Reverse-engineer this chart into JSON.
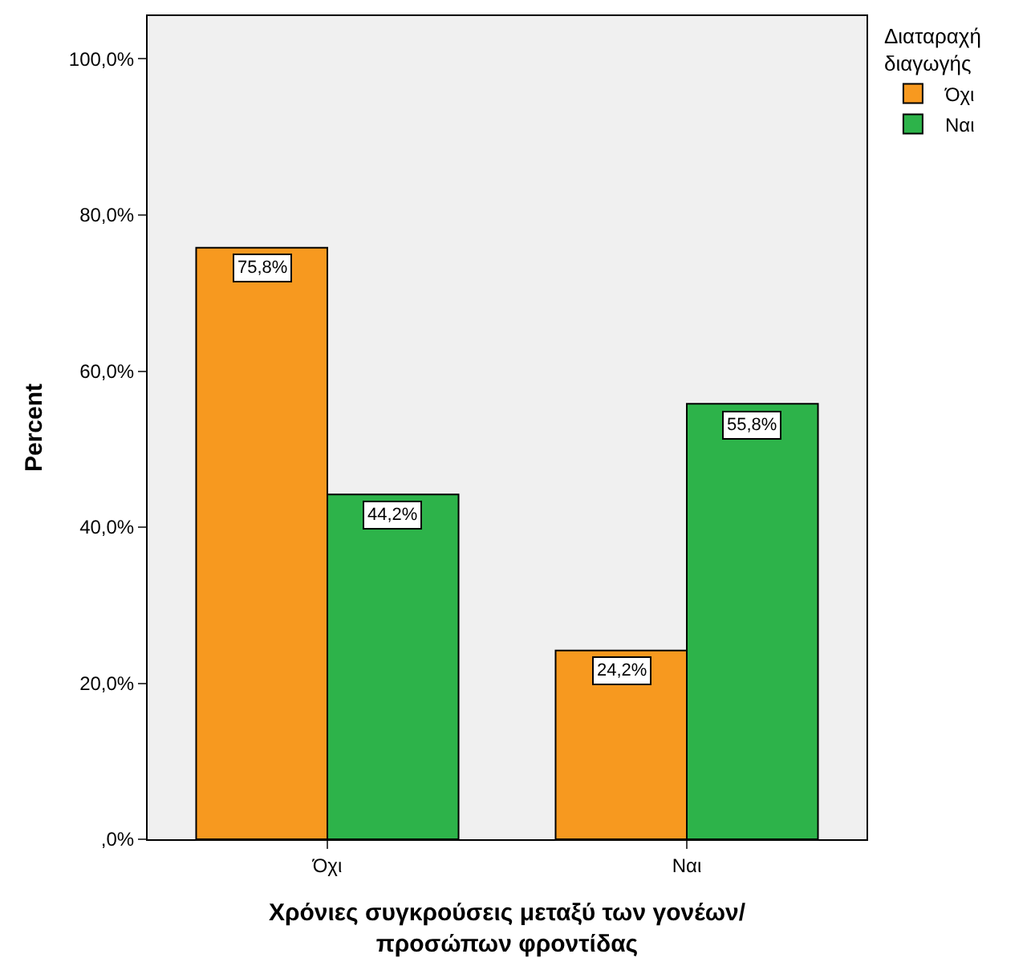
{
  "chart_data": {
    "type": "bar",
    "xlabel": "Χρόνιες συγκρούσεις μεταξύ των γονέων/ προσώπων φροντίδας",
    "ylabel": "Percent",
    "legend_title": "Διαταραχή διαγωγής",
    "categories": [
      "Όχι",
      "Ναι"
    ],
    "series": [
      {
        "name": "Όχι",
        "color": "#f7991f",
        "values": [
          75.8,
          24.2
        ],
        "value_labels": [
          "75,8%",
          "24,2%"
        ]
      },
      {
        "name": "Ναι",
        "color": "#2db34a",
        "values": [
          44.2,
          55.8
        ],
        "value_labels": [
          "44,2%",
          "55,8%"
        ]
      }
    ],
    "ylim": [
      0,
      105.5
    ],
    "yticks": [
      {
        "value": 0,
        "label": ",0%"
      },
      {
        "value": 20,
        "label": "20,0%"
      },
      {
        "value": 40,
        "label": "40,0%"
      },
      {
        "value": 60,
        "label": "60,0%"
      },
      {
        "value": 80,
        "label": "80,0%"
      },
      {
        "value": 100,
        "label": "100,0%"
      }
    ],
    "grid": false,
    "legend": "top right"
  }
}
